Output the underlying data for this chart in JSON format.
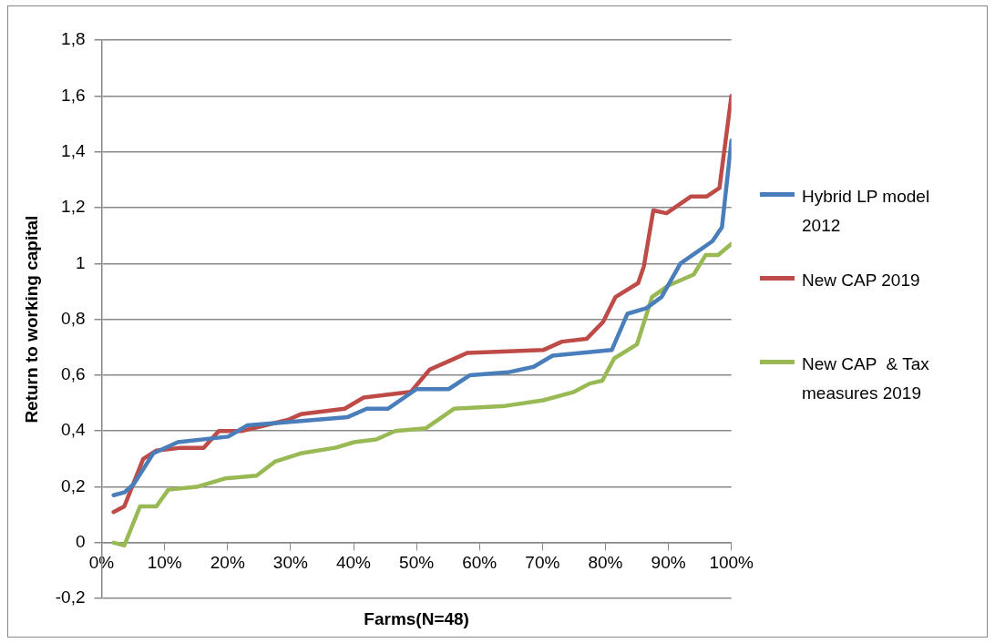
{
  "chart_data": {
    "type": "line",
    "xlabel": "Farms(N=48)",
    "ylabel": "Return to working capital",
    "xlim": [
      0,
      100
    ],
    "xticks": [
      {
        "value": 0,
        "label": "0%"
      },
      {
        "value": 10,
        "label": "10%"
      },
      {
        "value": 20,
        "label": "20%"
      },
      {
        "value": 30,
        "label": "30%"
      },
      {
        "value": 40,
        "label": "40%"
      },
      {
        "value": 50,
        "label": "50%"
      },
      {
        "value": 60,
        "label": "60%"
      },
      {
        "value": 70,
        "label": "70%"
      },
      {
        "value": 80,
        "label": "80%"
      },
      {
        "value": 90,
        "label": "90%"
      },
      {
        "value": 100,
        "label": "100%"
      }
    ],
    "ylim": [
      -0.2,
      1.8
    ],
    "yticks": [
      {
        "value": -0.2,
        "label": "-0,2"
      },
      0,
      {
        "value": 0.2,
        "label": "0,2"
      },
      {
        "value": 0.4,
        "label": "0,4"
      },
      {
        "value": 0.6,
        "label": "0,6"
      },
      {
        "value": 0.8,
        "label": "0,8"
      },
      1,
      {
        "value": 1.2,
        "label": "1,2"
      },
      {
        "value": 1.4,
        "label": "1,4"
      },
      {
        "value": 1.6,
        "label": "1,6"
      },
      {
        "value": 1.8,
        "label": "1,8"
      }
    ],
    "grid": "y",
    "legend": "right",
    "marker": "none",
    "line_style": "solid",
    "series": [
      {
        "name": "Hybrid LP model 2012",
        "color": "#4a7ebb",
        "x": [
          1.9,
          3.6,
          5.1,
          8.2,
          12.1,
          20.1,
          23.1,
          28.6,
          39.1,
          42.1,
          45.5,
          50.0,
          55.1,
          58.5,
          64.5,
          68.6,
          71.6,
          81.0,
          83.5,
          86.5,
          88.9,
          91.9,
          97.0,
          98.5,
          100
        ],
        "values": [
          0.17,
          0.18,
          0.21,
          0.32,
          0.36,
          0.38,
          0.42,
          0.43,
          0.45,
          0.48,
          0.48,
          0.55,
          0.55,
          0.6,
          0.61,
          0.63,
          0.67,
          0.69,
          0.82,
          0.84,
          0.88,
          1.0,
          1.08,
          1.13,
          1.44
        ]
      },
      {
        "name": "New CAP 2019",
        "color": "#be4b48",
        "x": [
          1.9,
          3.6,
          6.6,
          8.7,
          12.6,
          16.2,
          18.6,
          22.2,
          29.6,
          31.6,
          38.6,
          41.6,
          49.1,
          52.1,
          55.1,
          58.1,
          70.1,
          73.1,
          77.0,
          79.6,
          81.6,
          85.2,
          86.1,
          87.6,
          89.7,
          93.6,
          96.1,
          98.1,
          100
        ],
        "values": [
          0.11,
          0.13,
          0.3,
          0.33,
          0.34,
          0.34,
          0.4,
          0.4,
          0.44,
          0.46,
          0.48,
          0.52,
          0.54,
          0.62,
          0.65,
          0.68,
          0.69,
          0.72,
          0.73,
          0.79,
          0.88,
          0.93,
          0.99,
          1.19,
          1.18,
          1.24,
          1.24,
          1.27,
          1.6
        ]
      },
      {
        "name": "New CAP  & Tax measures 2019",
        "color": "#98b954",
        "x": [
          1.9,
          3.6,
          6.1,
          8.7,
          10.6,
          15.1,
          19.6,
          24.6,
          27.5,
          31.6,
          37.1,
          40.1,
          43.6,
          46.6,
          51.5,
          56.0,
          64.1,
          70.1,
          75.0,
          77.5,
          79.5,
          81.4,
          85.0,
          87.4,
          89.9,
          94.0,
          95.9,
          97.9,
          100
        ],
        "values": [
          0,
          -0.01,
          0.13,
          0.13,
          0.19,
          0.2,
          0.23,
          0.24,
          0.29,
          0.32,
          0.34,
          0.36,
          0.37,
          0.4,
          0.41,
          0.48,
          0.49,
          0.51,
          0.54,
          0.57,
          0.58,
          0.66,
          0.71,
          0.88,
          0.92,
          0.96,
          1.03,
          1.03,
          1.07
        ]
      }
    ]
  }
}
